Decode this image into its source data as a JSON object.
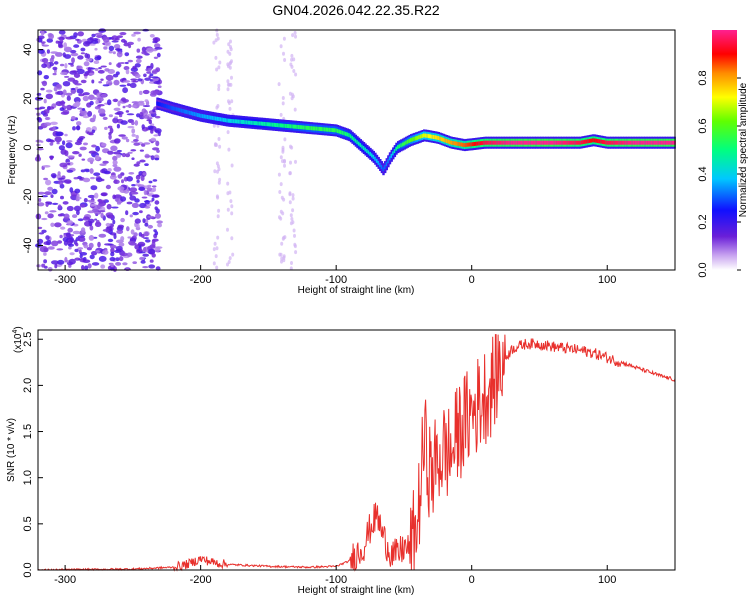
{
  "title": "GN04.2026.042.22.35.R22",
  "chart_data": [
    {
      "type": "heatmap",
      "xlabel": "Height of straight line (km)",
      "ylabel": "Frequency (Hz)",
      "xlim": [
        -320,
        150
      ],
      "ylim": [
        -50,
        48
      ],
      "xticks": [
        -300,
        -200,
        -100,
        0,
        100
      ],
      "yticks": [
        -40,
        -20,
        0,
        20,
        40
      ],
      "colorbar": {
        "label": "Normalized spectral amplitude",
        "range": [
          0,
          1
        ],
        "ticks": [
          "0.0",
          "0.2",
          "0.4",
          "0.6",
          "0.8"
        ]
      },
      "ridge": {
        "x": [
          -232,
          -220,
          -200,
          -180,
          -160,
          -140,
          -120,
          -100,
          -90,
          -80,
          -72,
          -65,
          -60,
          -55,
          -45,
          -35,
          -25,
          -15,
          -5,
          10,
          30,
          60,
          80,
          90,
          100,
          120,
          150
        ],
        "y": [
          18,
          16,
          13,
          11,
          10,
          9,
          8,
          7,
          5,
          0,
          -4,
          -9,
          -4,
          0,
          3,
          5,
          4,
          2,
          1,
          2,
          2,
          2,
          2,
          3,
          2,
          2,
          2
        ],
        "amplitude": [
          0.25,
          0.3,
          0.35,
          0.4,
          0.45,
          0.5,
          0.55,
          0.55,
          0.5,
          0.45,
          0.4,
          0.3,
          0.35,
          0.5,
          0.6,
          0.7,
          0.75,
          0.8,
          0.85,
          0.95,
          1.0,
          1.0,
          0.95,
          0.9,
          0.95,
          1.0,
          1.0
        ]
      },
      "noise_region_x": [
        -320,
        -230
      ]
    },
    {
      "type": "line",
      "xlabel": "Height of straight line (km)",
      "ylabel": "SNR (10 * v/v)",
      "y_scale_label": "(x10",
      "y_scale_exponent": "4",
      "xlim": [
        -320,
        150
      ],
      "ylim": [
        0,
        2.6
      ],
      "xticks": [
        -300,
        -200,
        -100,
        0,
        100
      ],
      "yticks": [
        "0.0",
        "0.5",
        "1.0",
        "1.5",
        "2.0",
        "2.5"
      ],
      "series": [
        {
          "name": "SNR",
          "color": "#e8302c",
          "x": [
            -320,
            -250,
            -220,
            -210,
            -200,
            -190,
            -180,
            -150,
            -120,
            -100,
            -90,
            -80,
            -75,
            -70,
            -65,
            -60,
            -55,
            -50,
            -45,
            -40,
            -35,
            -30,
            -25,
            -20,
            -15,
            -10,
            -5,
            0,
            5,
            10,
            15,
            20,
            25,
            30,
            40,
            50,
            60,
            70,
            80,
            90,
            100,
            110,
            120,
            130,
            140,
            150
          ],
          "y": [
            0.0,
            0.01,
            0.03,
            0.06,
            0.12,
            0.08,
            0.06,
            0.04,
            0.03,
            0.04,
            0.1,
            0.25,
            0.45,
            0.6,
            0.35,
            0.2,
            0.15,
            0.25,
            0.2,
            0.5,
            1.4,
            1.0,
            1.2,
            1.3,
            1.25,
            1.5,
            1.6,
            1.7,
            1.8,
            1.9,
            2.0,
            2.2,
            2.3,
            2.4,
            2.45,
            2.45,
            2.42,
            2.4,
            2.38,
            2.35,
            2.3,
            2.25,
            2.2,
            2.15,
            2.1,
            2.06
          ]
        }
      ]
    }
  ]
}
